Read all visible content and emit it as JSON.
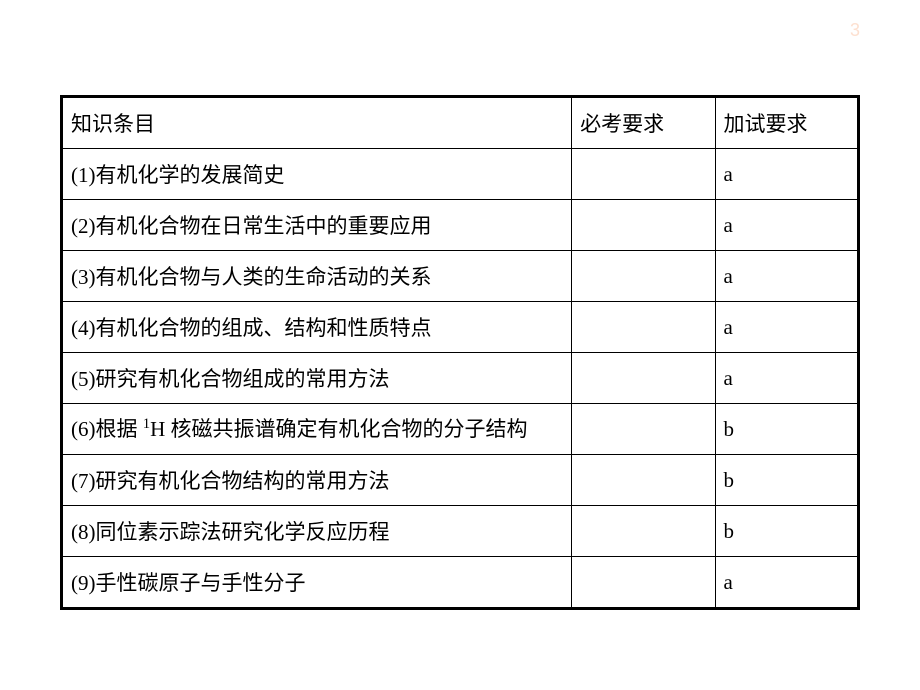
{
  "page": {
    "number": "3"
  },
  "table": {
    "type": "table",
    "background_color": "#ffffff",
    "border_color": "#000000",
    "outer_border_width": 3,
    "inner_border_width": 1,
    "font_size": 21,
    "columns": [
      {
        "key": "topic",
        "label": "知识条目",
        "width_pct": 64
      },
      {
        "key": "req1",
        "label": "必考要求",
        "width_pct": 18
      },
      {
        "key": "req2",
        "label": "加试要求",
        "width_pct": 18
      }
    ],
    "rows": [
      {
        "topic": "(1)有机化学的发展简史",
        "req1": "",
        "req2": "a"
      },
      {
        "topic": "(2)有机化合物在日常生活中的重要应用",
        "req1": "",
        "req2": "a"
      },
      {
        "topic": "(3)有机化合物与人类的生命活动的关系",
        "req1": "",
        "req2": "a"
      },
      {
        "topic": "(4)有机化合物的组成、结构和性质特点",
        "req1": "",
        "req2": "a"
      },
      {
        "topic": "(5)研究有机化合物组成的常用方法",
        "req1": "",
        "req2": "a"
      },
      {
        "topic_html": "(6)根据 <sup>1</sup>H 核磁共振谱确定有机化合物的分子结构",
        "topic": "(6)根据 1H 核磁共振谱确定有机化合物的分子结构",
        "req1": "",
        "req2": "b",
        "multiline": true
      },
      {
        "topic": "(7)研究有机化合物结构的常用方法",
        "req1": "",
        "req2": "b"
      },
      {
        "topic": "(8)同位素示踪法研究化学反应历程",
        "req1": "",
        "req2": "b"
      },
      {
        "topic": "(9)手性碳原子与手性分子",
        "req1": "",
        "req2": "a"
      }
    ]
  }
}
